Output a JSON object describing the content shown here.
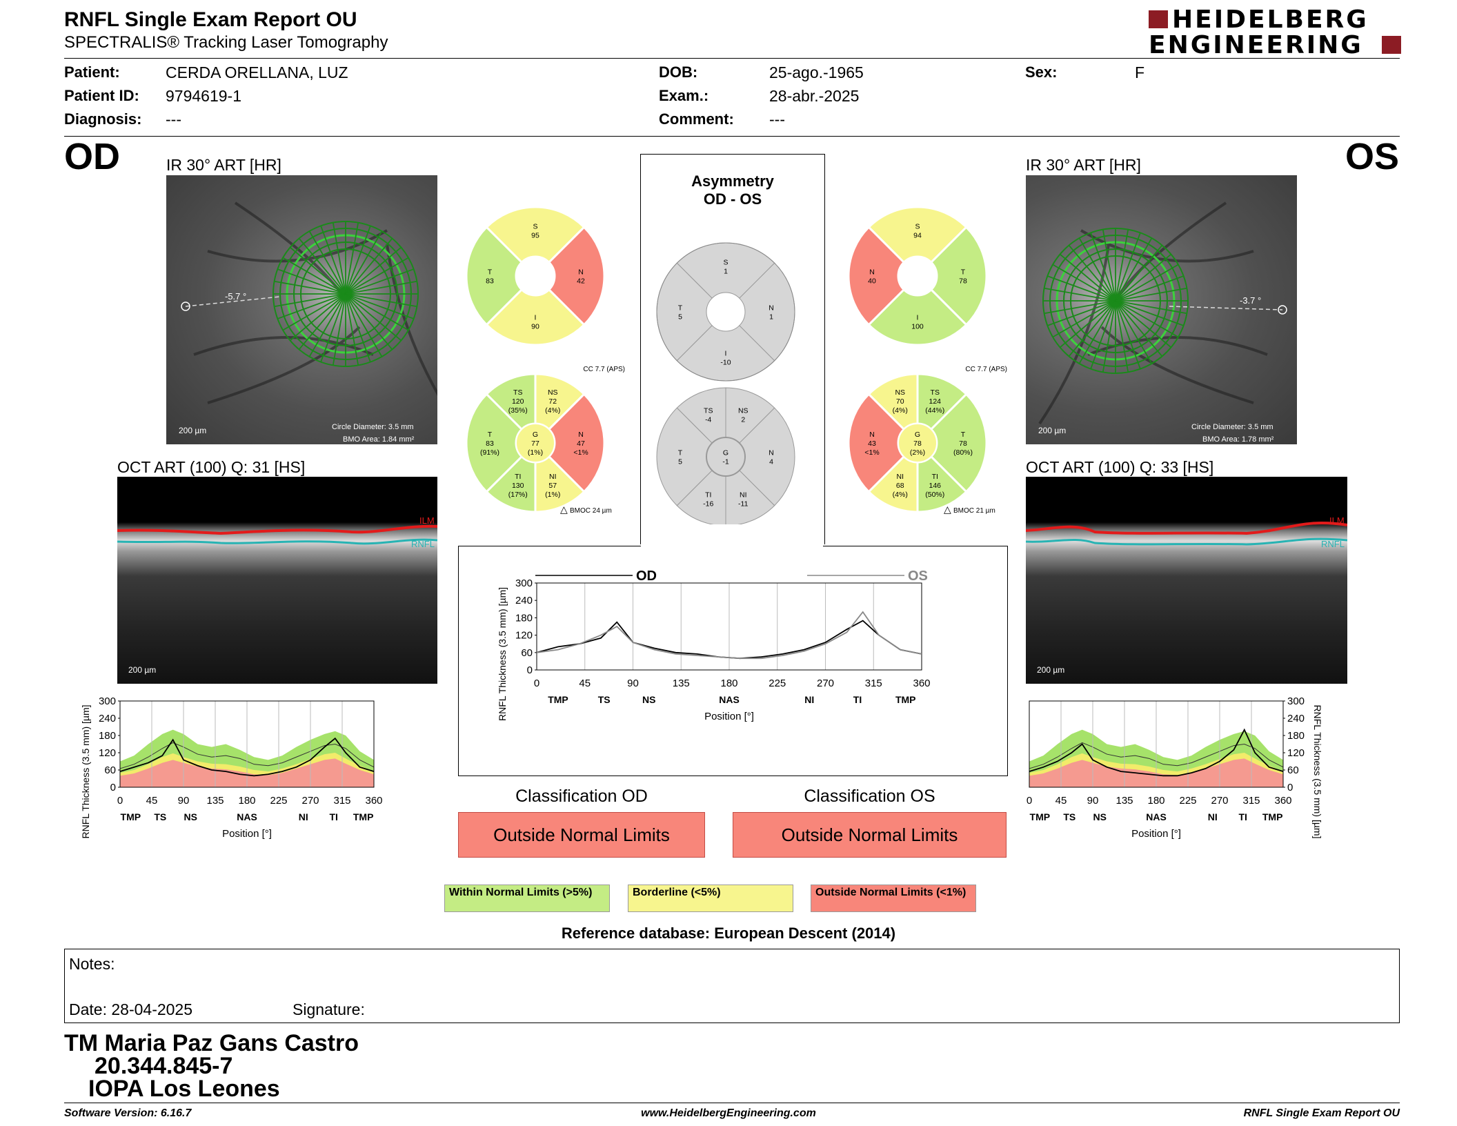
{
  "header": {
    "title": "RNFL Single Exam Report OU",
    "subtitle": "SPECTRALIS® Tracking Laser Tomography",
    "logo_line1": "HEIDELBERG",
    "logo_line2": "ENGINEERING"
  },
  "patient": {
    "patient_label": "Patient:",
    "patient_value": "CERDA ORELLANA, LUZ",
    "id_label": "Patient ID:",
    "id_value": "9794619-1",
    "diag_label": "Diagnosis:",
    "diag_value": "---",
    "dob_label": "DOB:",
    "dob_value": "25-ago.-1965",
    "exam_label": "Exam.:",
    "exam_value": "28-abr.-2025",
    "comment_label": "Comment:",
    "comment_value": "---",
    "sex_label": "Sex:",
    "sex_value": "F"
  },
  "od": {
    "eye": "OD",
    "ir_label": "IR 30° ART [HR]",
    "angle": "-5.7 °",
    "scale": "200 µm",
    "circle_diameter": "Circle Diameter: 3.5 mm",
    "bmo_area": "BMO Area: 1.84 mm²",
    "oct_label": "OCT ART (100) Q: 31 [HS]",
    "oct_scale": "200 µm",
    "ilm": "ILM",
    "rnfl": "RNFL"
  },
  "os": {
    "eye": "OS",
    "ir_label": "IR 30° ART [HR]",
    "angle": "-3.7 °",
    "scale": "200 µm",
    "circle_diameter": "Circle Diameter: 3.5 mm",
    "bmo_area": "BMO Area: 1.78 mm²",
    "oct_label": "OCT ART (100) Q: 33 [HS]",
    "oct_scale": "200 µm",
    "ilm": "ILM",
    "rnfl": "RNFL"
  },
  "colors": {
    "green": "#c4ec84",
    "yellow": "#f7f58e",
    "red": "#f8867a",
    "gray": "#d6d6d6",
    "green_band": "#a6e26a",
    "yellow_band": "#f2ec6a",
    "red_band": "#f59a90"
  },
  "sectors": {
    "od_quadrants": {
      "S": {
        "lbl": "S",
        "val": "95",
        "color": "yellow"
      },
      "N": {
        "lbl": "N",
        "val": "42",
        "color": "red"
      },
      "I": {
        "lbl": "I",
        "val": "90",
        "color": "yellow"
      },
      "T": {
        "lbl": "T",
        "val": "83",
        "color": "green"
      }
    },
    "os_quadrants": {
      "S": {
        "lbl": "S",
        "val": "94",
        "color": "yellow"
      },
      "T": {
        "lbl": "T",
        "val": "78",
        "color": "green"
      },
      "I": {
        "lbl": "I",
        "val": "100",
        "color": "green"
      },
      "N": {
        "lbl": "N",
        "val": "40",
        "color": "red"
      }
    },
    "asym_quadrants": {
      "S": {
        "lbl": "S",
        "val": "1"
      },
      "T": {
        "lbl": "T",
        "val": "5"
      },
      "I": {
        "lbl": "I",
        "val": "-10"
      },
      "N": {
        "lbl": "N",
        "val": "1"
      }
    },
    "cc_label": "CC 7.7 (APS)",
    "od_bmo": "BMOC 24 µm",
    "os_bmo": "BMOC 21 µm",
    "od_six": {
      "TS": {
        "lbl": "TS",
        "val": "120",
        "pct": "(35%)",
        "color": "green"
      },
      "NS": {
        "lbl": "NS",
        "val": "72",
        "pct": "(4%)",
        "color": "yellow"
      },
      "N": {
        "lbl": "N",
        "val": "47",
        "pct": "<1%",
        "color": "red"
      },
      "NI": {
        "lbl": "NI",
        "val": "57",
        "pct": "(1%)",
        "color": "yellow"
      },
      "TI": {
        "lbl": "TI",
        "val": "130",
        "pct": "(17%)",
        "color": "green"
      },
      "T": {
        "lbl": "T",
        "val": "83",
        "pct": "(91%)",
        "color": "green"
      },
      "G": {
        "lbl": "G",
        "val": "77",
        "pct": "(1%)",
        "color": "yellow"
      }
    },
    "os_six": {
      "NS": {
        "lbl": "NS",
        "val": "70",
        "pct": "(4%)",
        "color": "yellow"
      },
      "TS": {
        "lbl": "TS",
        "val": "124",
        "pct": "(44%)",
        "color": "green"
      },
      "T": {
        "lbl": "T",
        "val": "78",
        "pct": "(80%)",
        "color": "green"
      },
      "TI": {
        "lbl": "TI",
        "val": "146",
        "pct": "(50%)",
        "color": "green"
      },
      "NI": {
        "lbl": "NI",
        "val": "68",
        "pct": "(4%)",
        "color": "yellow"
      },
      "N": {
        "lbl": "N",
        "val": "43",
        "pct": "<1%",
        "color": "red"
      },
      "G": {
        "lbl": "G",
        "val": "78",
        "pct": "(2%)",
        "color": "yellow"
      }
    },
    "asym_six": {
      "NS": {
        "lbl": "NS",
        "val": "2"
      },
      "TS": {
        "lbl": "TS",
        "val": "-4"
      },
      "T": {
        "lbl": "T",
        "val": "5"
      },
      "TI": {
        "lbl": "TI",
        "val": "-16"
      },
      "NI": {
        "lbl": "NI",
        "val": "-11"
      },
      "N": {
        "lbl": "N",
        "val": "4"
      },
      "G": {
        "lbl": "G",
        "val": "-1"
      }
    }
  },
  "asymmetry": {
    "title1": "Asymmetry",
    "title2": "OD - OS"
  },
  "comparison": {
    "od_label": "OD",
    "os_label": "OS"
  },
  "classification": {
    "od_label": "Classification OD",
    "od_value": "Outside Normal Limits",
    "os_label": "Classification OS",
    "os_value": "Outside Normal Limits"
  },
  "legend": {
    "within": "Within Normal Limits (>5%)",
    "borderline": "Borderline (<5%)",
    "outside": "Outside Normal Limits (<1%)"
  },
  "reference": "Reference database: European Descent (2014)",
  "notes": {
    "label": "Notes:",
    "date": "Date: 28-04-2025",
    "signature": "Signature:"
  },
  "signatory": {
    "name": "TM Maria Paz Gans Castro",
    "rut": "20.344.845-7",
    "org": "IOPA Los Leones"
  },
  "footer": {
    "software": "Software Version: 6.16.7",
    "url": "www.HeidelbergEngineering.com",
    "report": "RNFL Single Exam Report OU"
  },
  "chart_data": [
    {
      "type": "area",
      "id": "od_profile",
      "xlabel": "Position [°]",
      "ylabel": "RNFL Thickness (3.5 mm) [µm]",
      "xlim": [
        0,
        360
      ],
      "ylim": [
        0,
        300
      ],
      "xticks": [
        0,
        45,
        90,
        135,
        180,
        225,
        270,
        315,
        360
      ],
      "yticks": [
        0,
        60,
        120,
        180,
        240,
        300
      ],
      "sector_labels": [
        {
          "x": 15,
          "t": "TMP"
        },
        {
          "x": 57,
          "t": "TS"
        },
        {
          "x": 100,
          "t": "NS"
        },
        {
          "x": 180,
          "t": "NAS"
        },
        {
          "x": 260,
          "t": "NI"
        },
        {
          "x": 303,
          "t": "TI"
        },
        {
          "x": 345,
          "t": "TMP"
        }
      ],
      "x": [
        0,
        20,
        40,
        60,
        75,
        90,
        110,
        130,
        150,
        170,
        190,
        210,
        230,
        250,
        270,
        290,
        305,
        320,
        340,
        360
      ],
      "normal_upper": [
        90,
        110,
        150,
        185,
        200,
        185,
        150,
        140,
        150,
        130,
        105,
        95,
        110,
        140,
        165,
        185,
        195,
        180,
        125,
        95
      ],
      "normal_mean": [
        65,
        80,
        105,
        135,
        155,
        140,
        115,
        105,
        110,
        100,
        80,
        75,
        85,
        105,
        125,
        145,
        150,
        135,
        95,
        70
      ],
      "borderline": [
        50,
        60,
        80,
        105,
        118,
        105,
        90,
        82,
        80,
        72,
        60,
        55,
        65,
        80,
        98,
        115,
        120,
        100,
        75,
        55
      ],
      "outside": [
        40,
        48,
        65,
        85,
        95,
        85,
        72,
        65,
        62,
        55,
        45,
        42,
        50,
        65,
        80,
        95,
        100,
        82,
        60,
        45
      ],
      "series": [
        {
          "name": "OD",
          "values": [
            55,
            70,
            85,
            110,
            165,
            95,
            75,
            60,
            55,
            45,
            40,
            45,
            55,
            70,
            95,
            140,
            170,
            120,
            70,
            55
          ]
        }
      ]
    },
    {
      "type": "area",
      "id": "os_profile",
      "xlabel": "Position [°]",
      "ylabel": "RNFL Thickness (3.5 mm) [µm]",
      "xlim": [
        0,
        360
      ],
      "ylim": [
        0,
        300
      ],
      "xticks": [
        0,
        45,
        90,
        135,
        180,
        225,
        270,
        315,
        360
      ],
      "yticks": [
        0,
        60,
        120,
        180,
        240,
        300
      ],
      "sector_labels": [
        {
          "x": 15,
          "t": "TMP"
        },
        {
          "x": 57,
          "t": "TS"
        },
        {
          "x": 100,
          "t": "NS"
        },
        {
          "x": 180,
          "t": "NAS"
        },
        {
          "x": 260,
          "t": "NI"
        },
        {
          "x": 303,
          "t": "TI"
        },
        {
          "x": 345,
          "t": "TMP"
        }
      ],
      "x": [
        0,
        20,
        40,
        60,
        75,
        90,
        110,
        130,
        150,
        170,
        190,
        210,
        230,
        250,
        270,
        290,
        305,
        320,
        340,
        360
      ],
      "normal_upper": [
        90,
        110,
        150,
        185,
        200,
        185,
        150,
        140,
        150,
        130,
        105,
        95,
        110,
        140,
        165,
        185,
        195,
        180,
        125,
        95
      ],
      "normal_mean": [
        65,
        80,
        105,
        135,
        155,
        140,
        115,
        105,
        110,
        100,
        80,
        75,
        85,
        105,
        125,
        145,
        150,
        135,
        95,
        70
      ],
      "borderline": [
        50,
        60,
        80,
        105,
        118,
        105,
        90,
        82,
        80,
        72,
        60,
        55,
        65,
        80,
        98,
        115,
        120,
        100,
        75,
        55
      ],
      "outside": [
        40,
        48,
        65,
        85,
        95,
        85,
        72,
        65,
        62,
        55,
        45,
        42,
        50,
        65,
        80,
        95,
        100,
        82,
        60,
        45
      ],
      "series": [
        {
          "name": "OS",
          "values": [
            55,
            70,
            90,
            120,
            150,
            95,
            70,
            55,
            50,
            45,
            40,
            40,
            50,
            65,
            90,
            130,
            200,
            120,
            70,
            55
          ]
        }
      ]
    },
    {
      "type": "line",
      "id": "comparison",
      "xlabel": "Position [°]",
      "ylabel": "RNFL Thickness (3.5 mm) [µm]",
      "xlim": [
        0,
        360
      ],
      "ylim": [
        0,
        300
      ],
      "xticks": [
        0,
        45,
        90,
        135,
        180,
        225,
        270,
        315,
        360
      ],
      "yticks": [
        0,
        60,
        120,
        180,
        240,
        300
      ],
      "sector_labels": [
        {
          "x": 20,
          "t": "TMP"
        },
        {
          "x": 63,
          "t": "TS"
        },
        {
          "x": 105,
          "t": "NS"
        },
        {
          "x": 180,
          "t": "NAS"
        },
        {
          "x": 255,
          "t": "NI"
        },
        {
          "x": 300,
          "t": "TI"
        },
        {
          "x": 345,
          "t": "TMP"
        }
      ],
      "x": [
        0,
        20,
        40,
        60,
        75,
        90,
        110,
        130,
        150,
        170,
        190,
        210,
        230,
        250,
        270,
        290,
        305,
        320,
        340,
        360
      ],
      "series": [
        {
          "name": "OD",
          "values": [
            60,
            80,
            90,
            110,
            165,
            95,
            75,
            60,
            55,
            45,
            40,
            45,
            55,
            70,
            95,
            140,
            170,
            120,
            70,
            55
          ]
        },
        {
          "name": "OS",
          "values": [
            60,
            70,
            90,
            120,
            150,
            95,
            70,
            55,
            50,
            45,
            40,
            40,
            50,
            65,
            90,
            130,
            200,
            120,
            70,
            55
          ]
        }
      ]
    }
  ]
}
